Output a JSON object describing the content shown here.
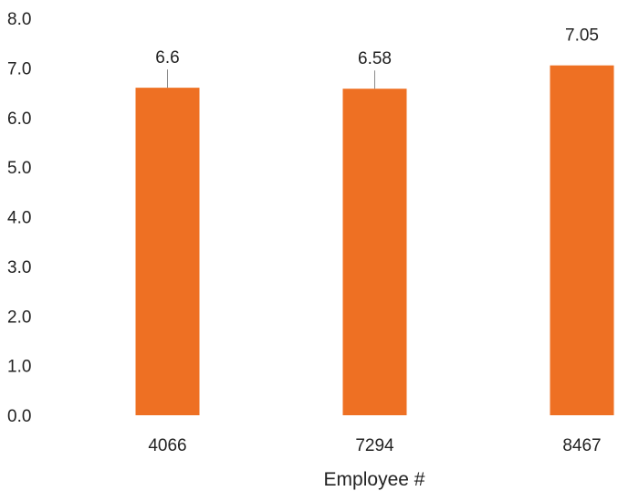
{
  "chart_data": {
    "type": "bar",
    "categories": [
      "4066",
      "7294",
      "8467"
    ],
    "values": [
      6.6,
      6.58,
      7.05
    ],
    "data_labels": [
      "6.6",
      "6.58",
      "7.05"
    ],
    "xlabel": "Employee #",
    "ylabel": "",
    "ylim": [
      0,
      8
    ],
    "yticks": [
      "0.0",
      "1.0",
      "2.0",
      "3.0",
      "4.0",
      "5.0",
      "6.0",
      "7.0",
      "8.0"
    ],
    "grid": false,
    "legend": "none",
    "bar_color": "#ee7023"
  }
}
